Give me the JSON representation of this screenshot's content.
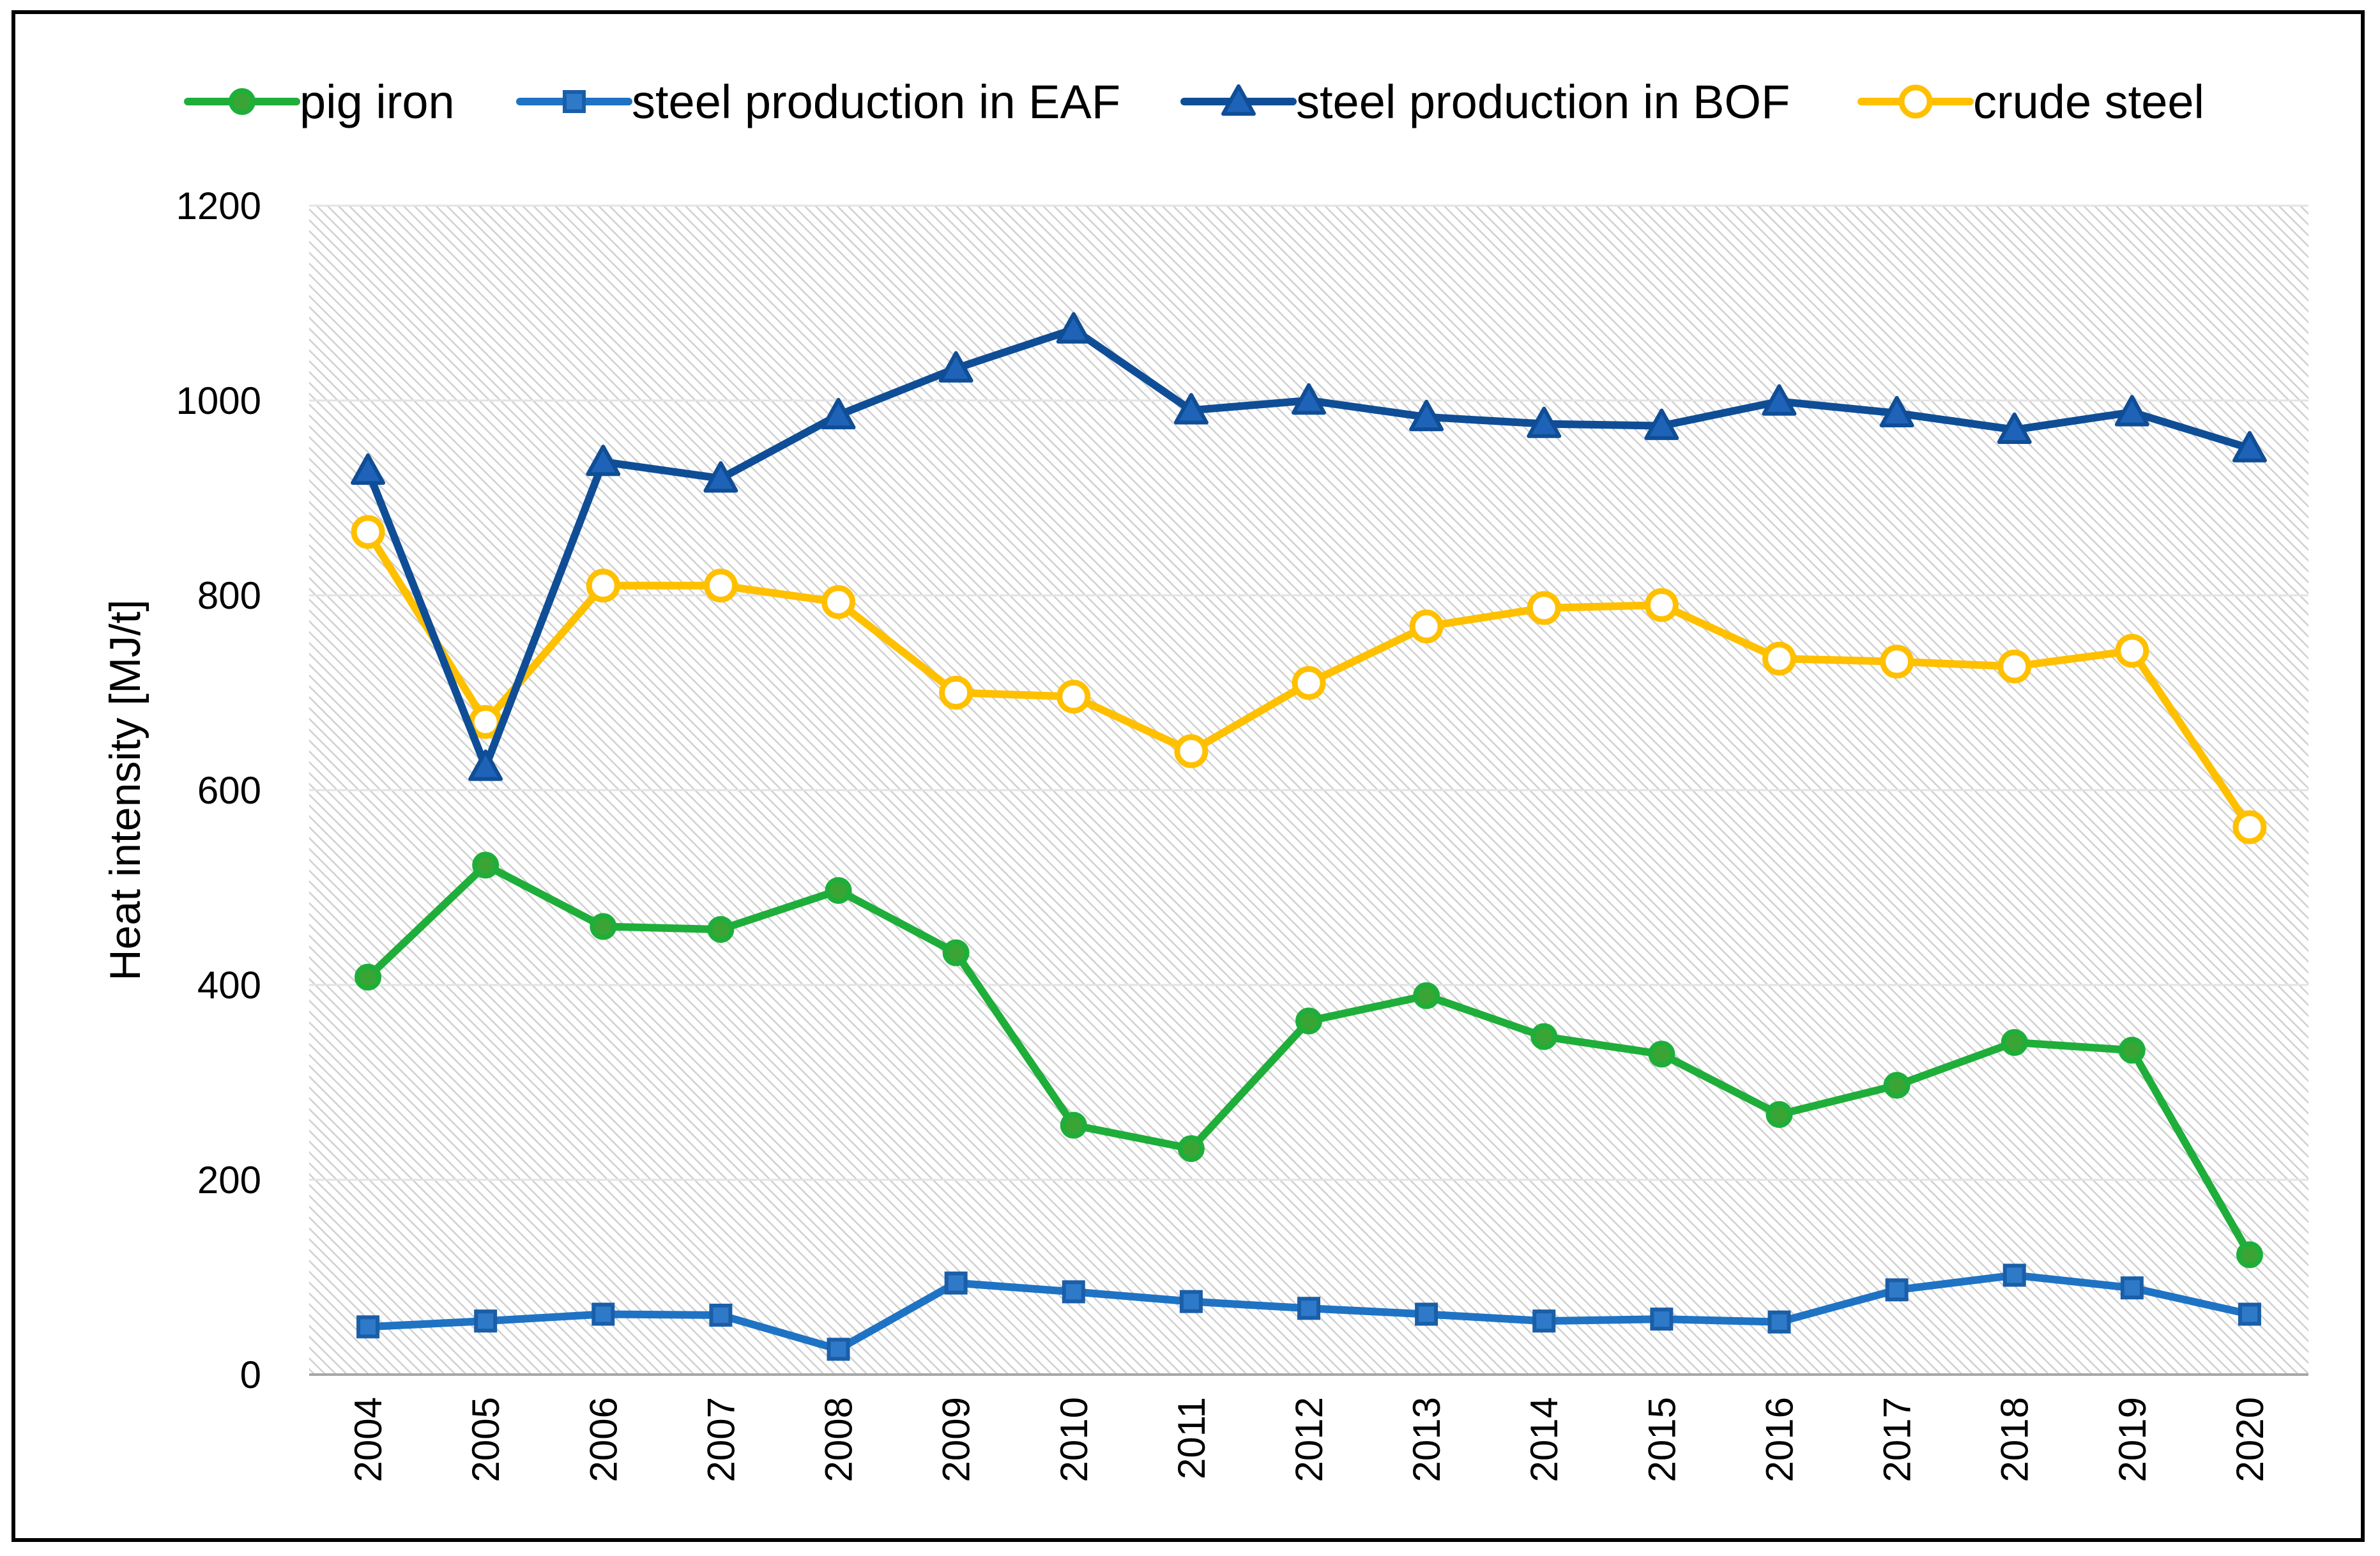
{
  "chart_data": {
    "type": "line",
    "title": "",
    "xlabel": "",
    "ylabel": "Heat intensity [MJ/t]",
    "ylim": [
      0,
      1200
    ],
    "yticks": [
      0,
      200,
      400,
      600,
      800,
      1000,
      1200
    ],
    "grid": true,
    "legend_position": "top",
    "categories": [
      "2004",
      "2005",
      "2006",
      "2007",
      "2008",
      "2009",
      "2010",
      "2011",
      "2012",
      "2013",
      "2014",
      "2015",
      "2016",
      "2017",
      "2018",
      "2019",
      "2020"
    ],
    "series": [
      {
        "name": "pig iron",
        "color": "#1FAE3A",
        "marker": "circle-filled",
        "values": [
          408,
          523,
          460,
          457,
          497,
          433,
          256,
          232,
          363,
          389,
          347,
          329,
          267,
          297,
          341,
          333,
          123
        ]
      },
      {
        "name": "steel production in EAF",
        "color": "#1F73C4",
        "marker": "square",
        "values": [
          49,
          55,
          62,
          61,
          26,
          94,
          85,
          75,
          68,
          62,
          55,
          57,
          54,
          87,
          102,
          89,
          62
        ]
      },
      {
        "name": "steel production in BOF",
        "color": "#0F4E96",
        "marker": "triangle",
        "values": [
          928,
          624,
          937,
          920,
          985,
          1033,
          1073,
          990,
          1000,
          983,
          976,
          974,
          999,
          987,
          970,
          988,
          951
        ]
      },
      {
        "name": "crude steel",
        "color": "#FFC000",
        "marker": "circle-open",
        "values": [
          865,
          670,
          810,
          810,
          793,
          700,
          696,
          640,
          710,
          768,
          787,
          790,
          735,
          732,
          727,
          743,
          562
        ]
      }
    ]
  }
}
